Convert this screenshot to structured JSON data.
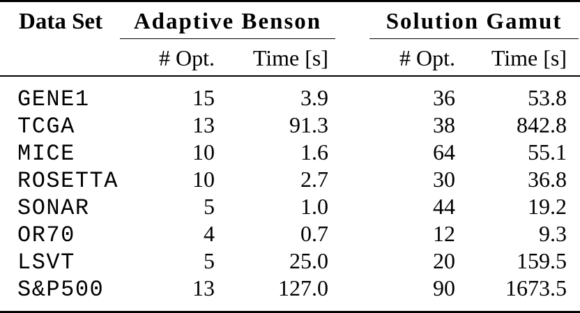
{
  "page": {
    "background_color": "#ffffff",
    "text_color": "#000000",
    "rule_color": "#000000"
  },
  "table": {
    "dataset_column_header": "Data Set",
    "column_groups": [
      {
        "label": "Adaptive Benson",
        "subcolumns": [
          "# Opt.",
          "Time [s]"
        ]
      },
      {
        "label": "Solution Gamut",
        "subcolumns": [
          "# Opt.",
          "Time [s]"
        ]
      }
    ],
    "rows": [
      {
        "name": "GENE1",
        "ab_opt": "15",
        "ab_time": "3.9",
        "sg_opt": "36",
        "sg_time": "53.8"
      },
      {
        "name": "TCGA",
        "ab_opt": "13",
        "ab_time": "91.3",
        "sg_opt": "38",
        "sg_time": "842.8"
      },
      {
        "name": "MICE",
        "ab_opt": "10",
        "ab_time": "1.6",
        "sg_opt": "64",
        "sg_time": "55.1"
      },
      {
        "name": "ROSETTA",
        "ab_opt": "10",
        "ab_time": "2.7",
        "sg_opt": "30",
        "sg_time": "36.8"
      },
      {
        "name": "SONAR",
        "ab_opt": "5",
        "ab_time": "1.0",
        "sg_opt": "44",
        "sg_time": "19.2"
      },
      {
        "name": "OR70",
        "ab_opt": "4",
        "ab_time": "0.7",
        "sg_opt": "12",
        "sg_time": "9.3"
      },
      {
        "name": "LSVT",
        "ab_opt": "5",
        "ab_time": "25.0",
        "sg_opt": "20",
        "sg_time": "159.5"
      },
      {
        "name": "S&P500",
        "ab_opt": "13",
        "ab_time": "127.0",
        "sg_opt": "90",
        "sg_time": "1673.5"
      }
    ]
  }
}
